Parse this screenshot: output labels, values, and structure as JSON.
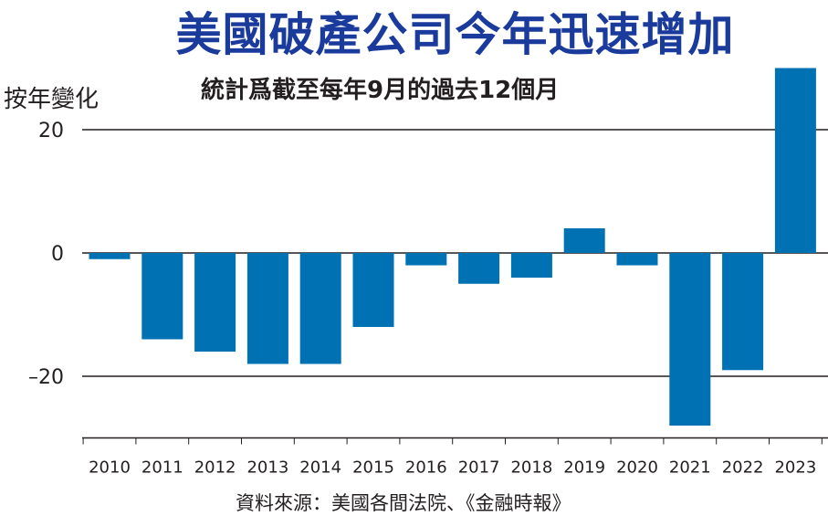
{
  "chart_data": {
    "type": "bar",
    "title": "美國破產公司今年迅速增加",
    "subtitle": "統計爲截至每年9月的過去12個月",
    "ylabel": "按年變化",
    "xlabel": "",
    "source": "資料來源：美國各間法院、《金融時報》",
    "categories": [
      "2010",
      "2011",
      "2012",
      "2013",
      "2014",
      "2015",
      "2016",
      "2017",
      "2018",
      "2019",
      "2020",
      "2021",
      "2022",
      "2023"
    ],
    "values": [
      -1,
      -14,
      -16,
      -18,
      -18,
      -12,
      -2,
      -5,
      -4,
      4,
      -2,
      -28,
      -19,
      30
    ],
    "yticks": [
      20,
      0,
      -20
    ],
    "ytick_labels": [
      "20",
      "0",
      "–20"
    ],
    "ylim": [
      -30,
      30
    ],
    "grid": true,
    "bar_color": "#0071b3",
    "title_color": "#1a3a9c"
  }
}
